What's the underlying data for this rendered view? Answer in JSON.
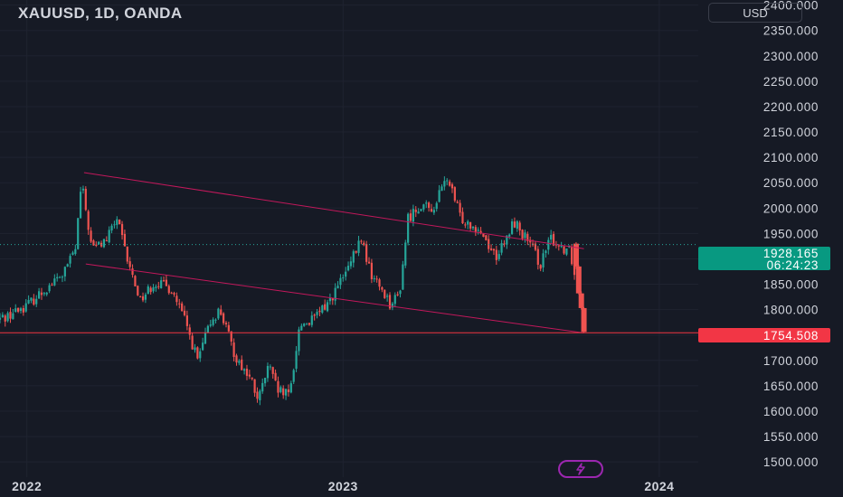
{
  "header": {
    "title": "XAUUSD, 1D, OANDA",
    "currency": "USD"
  },
  "price_tags": {
    "current_price": "1928.165",
    "countdown": "06:24:23",
    "support_price": "1754.508"
  },
  "colors": {
    "background": "#161a25",
    "up": "#26a69a",
    "down": "#ef5350",
    "trendline": "#c2185b",
    "support": "#f23645",
    "current_tag": "#089981",
    "flash": "#9c27b0"
  },
  "icons": {
    "flash": "lightning-icon"
  },
  "chart_data": {
    "type": "candlestick",
    "title": "XAUUSD, 1D, OANDA",
    "xlabel": "",
    "ylabel": "",
    "y_ticks": [
      "2400.000",
      "2350.000",
      "2300.000",
      "2250.000",
      "2200.000",
      "2150.000",
      "2100.000",
      "2050.000",
      "2000.000",
      "1950.000",
      "1900.000",
      "1850.000",
      "1800.000",
      "1750.000",
      "1700.000",
      "1650.000",
      "1600.000",
      "1550.000",
      "1500.000"
    ],
    "ylim": [
      1470,
      2410
    ],
    "x_ticks": [
      "2022",
      "2023",
      "2024"
    ],
    "xlim": [
      "2021-12-01",
      "2024-02-15"
    ],
    "grid": true,
    "current_price": 1928.165,
    "horizontal_line": 1754.508,
    "trend_channel": [
      {
        "start": [
          "2022-03-08",
          2070
        ],
        "end": [
          "2023-10-06",
          1920
        ]
      },
      {
        "start": [
          "2022-03-10",
          1890
        ],
        "end": [
          "2023-10-06",
          1754
        ]
      }
    ],
    "price_path": [
      [
        "2021-12-01",
        1780
      ],
      [
        "2021-12-15",
        1790
      ],
      [
        "2022-01-05",
        1810
      ],
      [
        "2022-01-25",
        1840
      ],
      [
        "2022-02-15",
        1870
      ],
      [
        "2022-03-01",
        1920
      ],
      [
        "2022-03-08",
        2050
      ],
      [
        "2022-03-20",
        1920
      ],
      [
        "2022-04-05",
        1935
      ],
      [
        "2022-04-18",
        1980
      ],
      [
        "2022-05-01",
        1890
      ],
      [
        "2022-05-15",
        1820
      ],
      [
        "2022-06-01",
        1855
      ],
      [
        "2022-06-20",
        1840
      ],
      [
        "2022-07-05",
        1780
      ],
      [
        "2022-07-20",
        1700
      ],
      [
        "2022-08-05",
        1780
      ],
      [
        "2022-08-15",
        1800
      ],
      [
        "2022-09-01",
        1710
      ],
      [
        "2022-09-20",
        1660
      ],
      [
        "2022-09-28",
        1620
      ],
      [
        "2022-10-10",
        1690
      ],
      [
        "2022-10-20",
        1640
      ],
      [
        "2022-11-03",
        1630
      ],
      [
        "2022-11-15",
        1770
      ],
      [
        "2022-12-01",
        1780
      ],
      [
        "2022-12-20",
        1820
      ],
      [
        "2023-01-10",
        1880
      ],
      [
        "2023-01-25",
        1940
      ],
      [
        "2023-02-05",
        1870
      ],
      [
        "2023-02-20",
        1835
      ],
      [
        "2023-02-28",
        1810
      ],
      [
        "2023-03-10",
        1830
      ],
      [
        "2023-03-20",
        1980
      ],
      [
        "2023-04-05",
        2010
      ],
      [
        "2023-04-15",
        1990
      ],
      [
        "2023-05-04",
        2060
      ],
      [
        "2023-05-20",
        1980
      ],
      [
        "2023-06-10",
        1960
      ],
      [
        "2023-06-29",
        1905
      ],
      [
        "2023-07-10",
        1930
      ],
      [
        "2023-07-20",
        1975
      ],
      [
        "2023-08-05",
        1935
      ],
      [
        "2023-08-20",
        1890
      ],
      [
        "2023-09-01",
        1940
      ],
      [
        "2023-09-15",
        1920
      ],
      [
        "2023-09-22",
        1925
      ],
      [
        "2023-09-27",
        1880
      ],
      [
        "2023-10-02",
        1830
      ],
      [
        "2023-10-06",
        1785
      ]
    ],
    "candle_every_days": 3,
    "final_candles": [
      {
        "date": "2023-09-27",
        "open": 1930,
        "high": 1933,
        "low": 1880,
        "close": 1885
      },
      {
        "date": "2023-09-30",
        "open": 1885,
        "high": 1888,
        "low": 1830,
        "close": 1832
      },
      {
        "date": "2023-10-03",
        "open": 1832,
        "high": 1836,
        "low": 1800,
        "close": 1803
      },
      {
        "date": "2023-10-06",
        "open": 1803,
        "high": 1805,
        "low": 1754,
        "close": 1756
      }
    ]
  }
}
